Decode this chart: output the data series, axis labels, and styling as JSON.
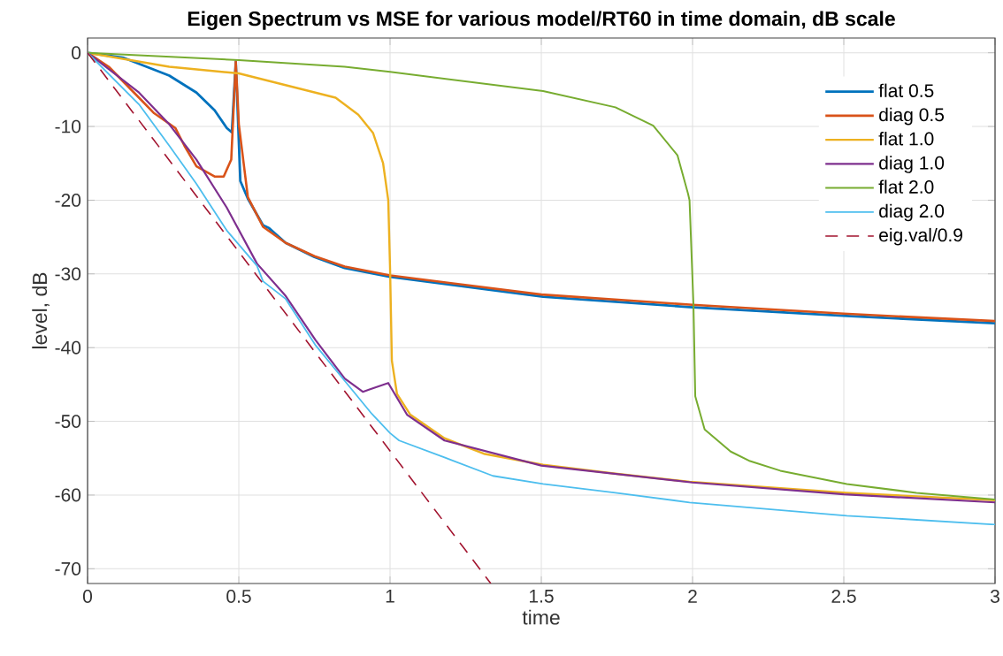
{
  "chart_data": {
    "type": "line",
    "title": "Eigen Spectrum vs MSE for various model/RT60 in time domain, dB scale",
    "xlabel": "time",
    "ylabel": "level, dB",
    "xlim": [
      0,
      3
    ],
    "ylim": [
      -72,
      2
    ],
    "xticks": [
      0,
      0.5,
      1,
      1.5,
      2,
      2.5,
      3
    ],
    "yticks": [
      -70,
      -60,
      -50,
      -40,
      -30,
      -20,
      -10,
      0
    ],
    "grid": true,
    "legend": "top right",
    "series": [
      {
        "name": "flat 0.5",
        "color": "#0072bd",
        "x": [
          0,
          0.12,
          0.27,
          0.36,
          0.42,
          0.46,
          0.477,
          0.49,
          0.505,
          0.53,
          0.58,
          0.6,
          0.655,
          0.75,
          0.85,
          1.0,
          1.506,
          1.99,
          2.51,
          3.0
        ],
        "values": [
          0,
          -0.7,
          -3.1,
          -5.4,
          -7.8,
          -10.2,
          -10.8,
          -1.2,
          -17.4,
          -19.8,
          -23.4,
          -23.8,
          -25.8,
          -27.7,
          -29.2,
          -30.4,
          -33.1,
          -34.5,
          -35.7,
          -36.7
        ]
      },
      {
        "name": "diag 0.5",
        "color": "#d95319",
        "x": [
          0,
          0.07,
          0.17,
          0.22,
          0.29,
          0.32,
          0.36,
          0.42,
          0.45,
          0.475,
          0.49,
          0.5,
          0.53,
          0.58,
          0.655,
          0.75,
          0.85,
          1.0,
          1.5,
          2.0,
          2.5,
          3.0
        ],
        "values": [
          0,
          -1.9,
          -6.1,
          -8.2,
          -10.2,
          -12.6,
          -15.4,
          -16.8,
          -16.8,
          -14.5,
          -1.2,
          -9.7,
          -19.6,
          -23.6,
          -25.8,
          -27.6,
          -29.0,
          -30.2,
          -32.8,
          -34.2,
          -35.4,
          -36.4
        ]
      },
      {
        "name": "flat 1.0",
        "color": "#edb120",
        "x": [
          0,
          0.27,
          0.5,
          0.82,
          0.895,
          0.944,
          0.977,
          0.994,
          1.0,
          1.006,
          1.023,
          1.067,
          1.18,
          1.31,
          1.506,
          1.745,
          1.99,
          2.51,
          3.0
        ],
        "values": [
          0,
          -1.9,
          -2.8,
          -6.1,
          -8.4,
          -10.9,
          -15,
          -20,
          -29.2,
          -41.8,
          -46.3,
          -49.1,
          -52.3,
          -54.4,
          -55.9,
          -57.1,
          -58.2,
          -59.7,
          -60.7
        ]
      },
      {
        "name": "diag 1.0",
        "color": "#7e2f8e",
        "x": [
          0,
          0.17,
          0.27,
          0.36,
          0.46,
          0.56,
          0.655,
          0.754,
          0.85,
          0.91,
          0.93,
          0.994,
          1.056,
          1.18,
          1.5,
          2.0,
          2.5,
          3.0
        ],
        "values": [
          0,
          -5.4,
          -9.7,
          -14.5,
          -21,
          -28.6,
          -33,
          -39,
          -44.2,
          -46,
          -45.7,
          -44.8,
          -49.1,
          -52.6,
          -56.0,
          -58.3,
          -59.9,
          -61.0
        ]
      },
      {
        "name": "flat 2.0",
        "color": "#77ac30",
        "x": [
          0,
          0.5,
          0.85,
          1.0,
          1.506,
          1.745,
          1.87,
          1.95,
          1.985,
          1.99,
          2.003,
          2.009,
          2.04,
          2.126,
          2.19,
          2.29,
          2.51,
          2.74,
          3.0
        ],
        "values": [
          0,
          -1.0,
          -1.9,
          -2.6,
          -5.2,
          -7.4,
          -9.9,
          -13.9,
          -19.1,
          -20,
          -34.2,
          -46.6,
          -51.1,
          -54.1,
          -55.4,
          -56.7,
          -58.5,
          -59.7,
          -60.6
        ]
      },
      {
        "name": "diag 2.0",
        "color": "#4dbeee",
        "x": [
          0,
          0.17,
          0.27,
          0.36,
          0.46,
          0.56,
          0.58,
          0.655,
          0.754,
          0.85,
          0.94,
          1.0,
          1.03,
          1.18,
          1.34,
          1.506,
          1.745,
          1.99,
          2.51,
          3.0
        ],
        "values": [
          0,
          -7,
          -12.6,
          -17.8,
          -24.1,
          -28.9,
          -31,
          -33.4,
          -39.7,
          -44.5,
          -49,
          -51.6,
          -52.6,
          -54.9,
          -57.4,
          -58.5,
          -59.7,
          -61,
          -62.8,
          -64
        ]
      },
      {
        "name": "eig.val/0.9",
        "color": "#a2142f",
        "line_style": "dashed",
        "x": [
          0,
          1.333
        ],
        "values": [
          0,
          -72
        ]
      }
    ]
  }
}
